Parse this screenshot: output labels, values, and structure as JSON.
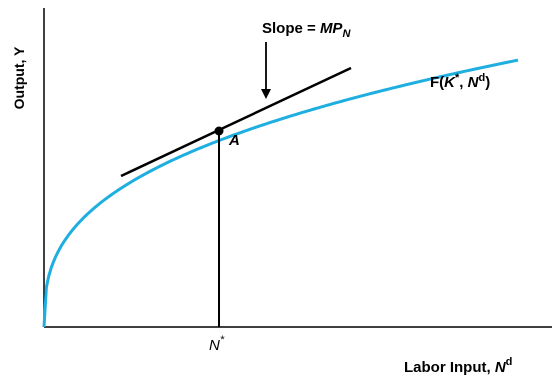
{
  "diagram": {
    "y_axis_label": "Output, Y",
    "x_axis_label_text": "Labor Input, ",
    "x_axis_label_var": "N",
    "x_axis_label_sup": "d",
    "slope_label_text": "Slope = ",
    "slope_label_var": "MP",
    "slope_label_sub": "N",
    "curve_label_f": "F(",
    "curve_label_k": "K",
    "curve_label_star": "*",
    "curve_label_sep": ", ",
    "curve_label_n": "N",
    "curve_label_sup": "d",
    "curve_label_close": ")",
    "point_label": "A",
    "n_star_var": "N",
    "n_star_sup": "*",
    "colors": {
      "curve": "#1eaee0",
      "axes": "#000000",
      "tangent": "#000000"
    }
  }
}
